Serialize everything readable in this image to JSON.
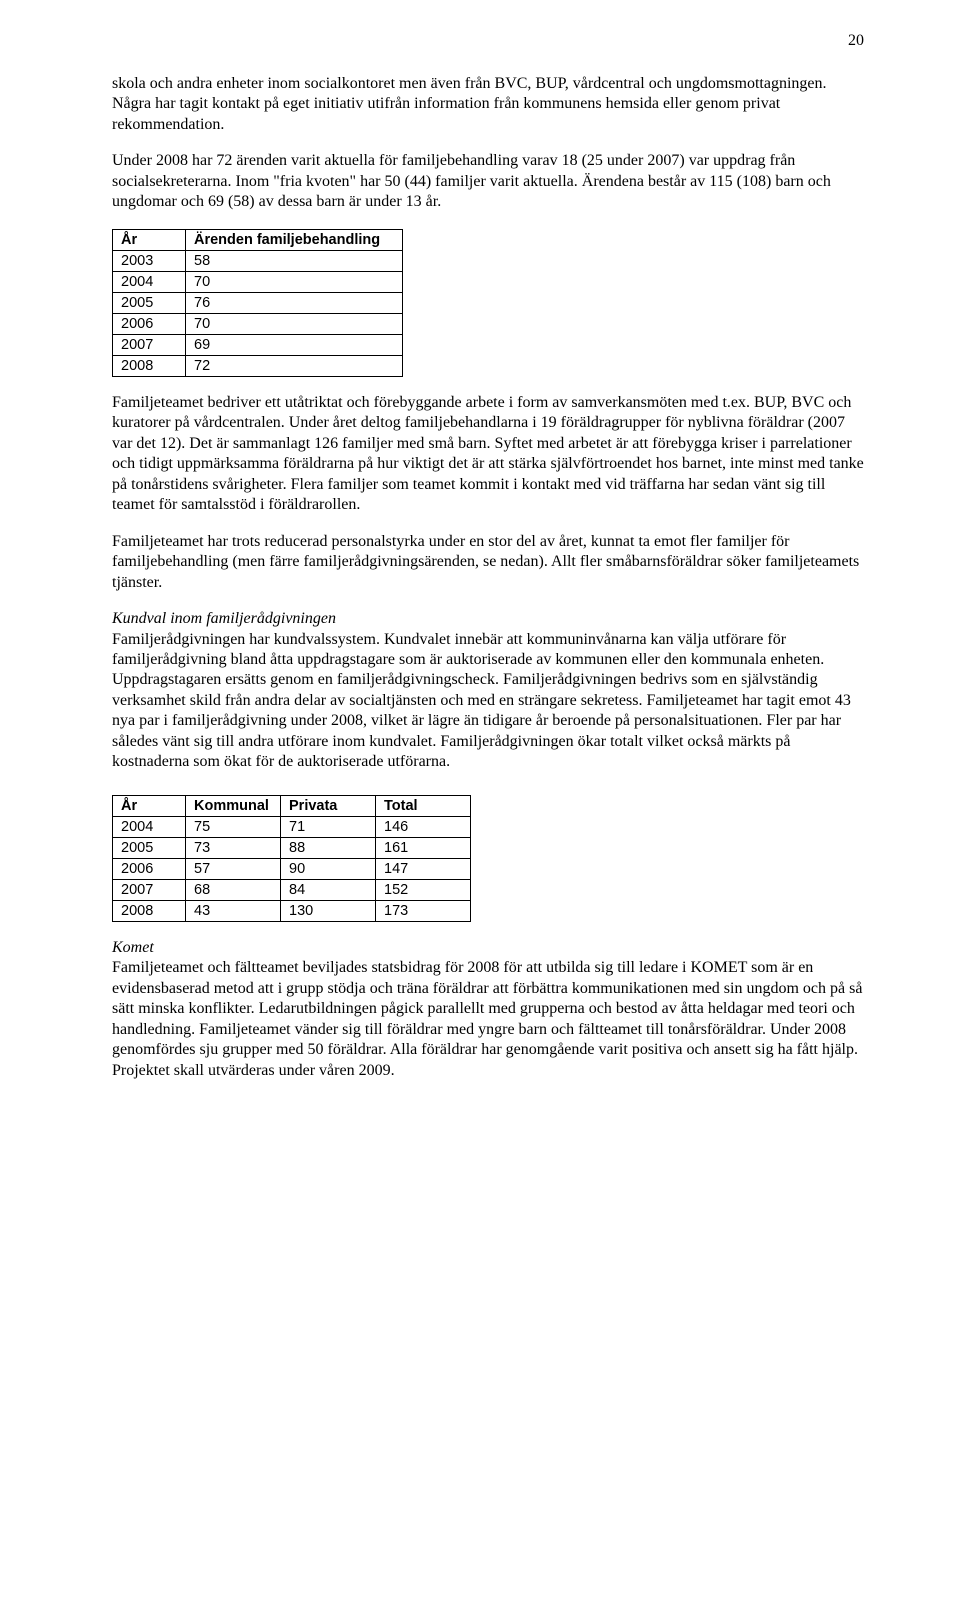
{
  "page_number": "20",
  "para1": "skola och andra enheter inom socialkontoret men även från BVC, BUP, vårdcentral och ungdomsmottagningen. Några har tagit kontakt på eget initiativ utifrån information från kommunens hemsida eller genom privat rekommendation.",
  "para2": "Under 2008 har 72 ärenden varit aktuella för familjebehandling varav 18 (25 under 2007) var uppdrag från socialsekreterarna. Inom \"fria kvoten\" har 50 (44) familjer varit aktuella. Ärendena består av 115 (108) barn och ungdomar och 69 (58) av dessa barn är under 13 år.",
  "table1": {
    "columns": [
      "År",
      "Ärenden familjebehandling"
    ],
    "rows": [
      [
        "2003",
        "58"
      ],
      [
        "2004",
        "70"
      ],
      [
        "2005",
        "76"
      ],
      [
        "2006",
        "70"
      ],
      [
        "2007",
        "69"
      ],
      [
        "2008",
        "72"
      ]
    ],
    "border_color": "#000000",
    "header_fontweight": "bold",
    "font_family": "Arial",
    "font_size_pt": 11
  },
  "para3": "Familjeteamet bedriver ett utåtriktat och förebyggande arbete i form av samverkansmöten med t.ex. BUP, BVC och kuratorer på vårdcentralen. Under året deltog familjebehandlarna i 19 föräldragrupper för nyblivna föräldrar (2007 var det 12). Det är sammanlagt 126 familjer med små barn. Syftet med arbetet är att förebygga kriser i parrelationer och tidigt uppmärksamma föräldrarna på hur viktigt det är att stärka självförtroendet hos barnet, inte minst med tanke på tonårstidens svårigheter. Flera familjer som teamet kommit i kontakt med vid träffarna har sedan vänt sig till teamet för samtalsstöd i föräldrarollen.",
  "para4": "Familjeteamet har trots reducerad personalstyrka under en stor del av året, kunnat ta emot fler familjer för familjebehandling (men färre familjerådgivningsärenden, se nedan). Allt fler småbarnsföräldrar söker familjeteamets tjänster.",
  "heading1": "Kundval inom familjerådgivningen",
  "para5": "Familjerådgivningen har kundvalssystem. Kundvalet innebär att kommuninvånarna kan välja utförare för familjerådgivning bland åtta uppdragstagare som är auktoriserade av kommunen eller den kommunala enheten. Uppdragstagaren ersätts genom en familjerådgivningscheck. Familjerådgivningen bedrivs som en självständig verksamhet skild från andra delar av socialtjänsten och med en strängare sekretess. Familjeteamet har tagit emot 43 nya par i familjerådgivning under 2008, vilket är lägre än tidigare år beroende på personalsituationen. Fler par har således vänt sig till andra utförare inom kundvalet. Familjerådgivningen ökar totalt vilket också märkts på kostnaderna som ökat för de auktoriserade utförarna.",
  "table2": {
    "columns": [
      "År",
      "Kommunal",
      "Privata",
      "Total"
    ],
    "rows": [
      [
        "2004",
        "75",
        "71",
        "146"
      ],
      [
        "2005",
        "73",
        "88",
        "161"
      ],
      [
        "2006",
        "57",
        "90",
        "147"
      ],
      [
        "2007",
        "68",
        "84",
        "152"
      ],
      [
        "2008",
        "43",
        "130",
        "173"
      ]
    ],
    "border_color": "#000000",
    "header_fontweight": "bold",
    "font_family": "Arial",
    "font_size_pt": 11
  },
  "heading2": "Komet",
  "para6": "Familjeteamet och fältteamet beviljades statsbidrag för 2008 för att utbilda sig till ledare i KOMET som är en evidensbaserad metod att i grupp stödja och träna föräldrar att förbättra kommunikationen med sin ungdom och på så sätt minska konflikter. Ledarutbildningen pågick parallellt med grupperna och bestod av åtta heldagar med teori och handledning. Familjeteamet vänder sig till föräldrar med yngre barn och fältteamet till tonårsföräldrar. Under 2008 genomfördes sju grupper med 50 föräldrar. Alla föräldrar har genomgående varit positiva och ansett sig ha fått hjälp. Projektet skall utvärderas under våren 2009."
}
